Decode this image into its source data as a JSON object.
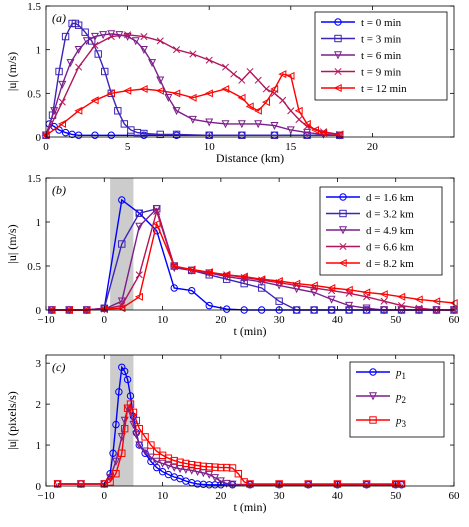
{
  "chart_data": [
    {
      "panel": "(a)",
      "type": "line",
      "xlabel": "Distance (km)",
      "ylabel": "|u| (m/s)",
      "xlim": [
        0,
        25
      ],
      "ylim": [
        0,
        1.5
      ],
      "xticks": [
        "0",
        "5",
        "10",
        "15",
        "20"
      ],
      "yticks": [
        "0",
        "0.5",
        "1",
        "1.5"
      ],
      "legend_position": "top-right",
      "series": [
        {
          "name": "t = 0 min",
          "color": "#0000ff",
          "marker": "circle",
          "x": [
            0.2,
            0.5,
            0.8,
            1.2,
            1.6,
            2.0,
            3.0,
            4.0,
            6.0,
            8.0,
            10.0,
            12.0,
            14.0,
            16.0,
            18.0
          ],
          "y": [
            0.15,
            0.12,
            0.08,
            0.05,
            0.03,
            0.02,
            0.02,
            0.02,
            0.02,
            0.02,
            0.02,
            0.02,
            0.02,
            0.02,
            0.02
          ]
        },
        {
          "name": "t = 3 min",
          "color": "#3d24b8",
          "marker": "square",
          "x": [
            0.0,
            0.4,
            0.8,
            1.2,
            1.6,
            1.8,
            2.0,
            2.4,
            2.8,
            3.2,
            3.6,
            4.0,
            4.4,
            4.8,
            5.2,
            5.6,
            6.0,
            7.0,
            8.0,
            10.0,
            12.0,
            14.0,
            16.0,
            18.0
          ],
          "y": [
            0.02,
            0.25,
            0.75,
            1.15,
            1.3,
            1.3,
            1.28,
            1.2,
            1.1,
            0.95,
            0.75,
            0.5,
            0.3,
            0.15,
            0.08,
            0.05,
            0.04,
            0.03,
            0.03,
            0.02,
            0.02,
            0.02,
            0.02,
            0.02
          ]
        },
        {
          "name": "t = 6 min",
          "color": "#7a1e8a",
          "marker": "triangle-down",
          "x": [
            0.0,
            0.5,
            1.0,
            1.5,
            2.0,
            2.5,
            3.0,
            3.5,
            4.0,
            4.5,
            5.0,
            5.5,
            6.0,
            6.5,
            7.0,
            7.5,
            8.0,
            9.0,
            10.0,
            11.0,
            12.0,
            13.0,
            14.0,
            15.0,
            16.0,
            17.0,
            18.0
          ],
          "y": [
            0.02,
            0.3,
            0.6,
            0.85,
            1.0,
            1.1,
            1.15,
            1.17,
            1.18,
            1.17,
            1.15,
            1.1,
            1.0,
            0.85,
            0.65,
            0.45,
            0.3,
            0.2,
            0.17,
            0.15,
            0.15,
            0.15,
            0.13,
            0.08,
            0.05,
            0.03,
            0.02
          ]
        },
        {
          "name": "t = 9 min",
          "color": "#b4145a",
          "marker": "x",
          "x": [
            0.0,
            1.0,
            2.0,
            3.0,
            4.0,
            5.0,
            6.0,
            7.0,
            8.0,
            9.0,
            10.0,
            11.0,
            11.5,
            12.0,
            12.5,
            13.0,
            13.5,
            14.0,
            14.5,
            15.0,
            15.5,
            16.0,
            17.0,
            18.0
          ],
          "y": [
            0.02,
            0.4,
            0.8,
            1.05,
            1.15,
            1.17,
            1.15,
            1.1,
            1.0,
            0.95,
            0.88,
            0.8,
            0.72,
            0.65,
            0.75,
            0.65,
            0.55,
            0.5,
            0.42,
            0.3,
            0.2,
            0.12,
            0.06,
            0.03
          ]
        },
        {
          "name": "t = 12 min",
          "color": "#ff0000",
          "marker": "triangle-left",
          "x": [
            0.0,
            1.0,
            2.0,
            3.0,
            4.0,
            5.0,
            6.0,
            7.0,
            8.0,
            9.0,
            10.0,
            11.0,
            12.0,
            12.5,
            13.0,
            13.5,
            14.0,
            14.5,
            15.0,
            15.5,
            16.0,
            16.5,
            17.0,
            18.0
          ],
          "y": [
            0.02,
            0.15,
            0.3,
            0.42,
            0.5,
            0.53,
            0.55,
            0.53,
            0.5,
            0.45,
            0.5,
            0.55,
            0.45,
            0.35,
            0.3,
            0.4,
            0.55,
            0.72,
            0.7,
            0.3,
            0.15,
            0.08,
            0.05,
            0.03
          ]
        }
      ]
    },
    {
      "panel": "(b)",
      "type": "line",
      "xlabel": "t (min)",
      "ylabel": "|u| (m/s)",
      "xlim": [
        -10,
        60
      ],
      "ylim": [
        0,
        1.5
      ],
      "shaded_region": [
        1,
        5
      ],
      "xticks": [
        "−10",
        "0",
        "10",
        "20",
        "30",
        "40",
        "50",
        "60"
      ],
      "yticks": [
        "0",
        "0.5",
        "1",
        "1.5"
      ],
      "legend_position": "top-right",
      "series": [
        {
          "name": "d = 1.6 km",
          "color": "#0000ff",
          "marker": "circle",
          "x": [
            -9,
            -6,
            -3,
            0,
            3,
            6,
            9,
            12,
            15,
            18,
            21,
            24,
            27,
            30,
            33,
            36,
            39,
            42,
            45,
            48,
            51,
            54,
            57,
            60
          ],
          "y": [
            0,
            0,
            0,
            0.02,
            1.25,
            1.1,
            0.9,
            0.25,
            0.22,
            0.05,
            0.01,
            0.0,
            0.0,
            0.0,
            0.0,
            0.0,
            0.0,
            0.0,
            0.0,
            0.0,
            0.0,
            0.0,
            0.0,
            0.0
          ]
        },
        {
          "name": "d = 3.2 km",
          "color": "#3d24b8",
          "marker": "square",
          "x": [
            -9,
            -6,
            -3,
            0,
            3,
            6,
            9,
            12,
            15,
            18,
            21,
            24,
            27,
            30,
            33,
            36,
            39,
            42,
            45,
            48,
            51,
            54,
            57,
            60
          ],
          "y": [
            0,
            0,
            0,
            0.02,
            0.75,
            1.1,
            1.15,
            0.5,
            0.45,
            0.4,
            0.35,
            0.3,
            0.25,
            0.1,
            0.0,
            0.0,
            0.0,
            0.0,
            0.0,
            0.0,
            0.0,
            0.0,
            0.0,
            0.0
          ]
        },
        {
          "name": "d = 4.9 km",
          "color": "#7a1e8a",
          "marker": "triangle-down",
          "x": [
            -9,
            -6,
            -3,
            0,
            3,
            6,
            9,
            12,
            15,
            18,
            21,
            24,
            27,
            30,
            33,
            36,
            39,
            42,
            45,
            48,
            51,
            54,
            57,
            60
          ],
          "y": [
            0,
            0,
            0,
            0.01,
            0.1,
            0.95,
            1.15,
            0.48,
            0.45,
            0.42,
            0.38,
            0.35,
            0.32,
            0.28,
            0.24,
            0.2,
            0.12,
            0.05,
            0.02,
            0.0,
            0.0,
            0.0,
            0.0,
            0.0
          ]
        },
        {
          "name": "d = 6.6 km",
          "color": "#b4145a",
          "marker": "x",
          "x": [
            -9,
            -6,
            -3,
            0,
            3,
            6,
            9,
            12,
            15,
            18,
            21,
            24,
            27,
            30,
            33,
            36,
            39,
            42,
            45,
            48,
            51,
            54,
            57,
            60
          ],
          "y": [
            0,
            0,
            0,
            0.01,
            0.05,
            0.4,
            1.12,
            0.5,
            0.45,
            0.42,
            0.4,
            0.37,
            0.34,
            0.31,
            0.28,
            0.25,
            0.22,
            0.19,
            0.15,
            0.1,
            0.05,
            0.02,
            0.0,
            0.0
          ]
        },
        {
          "name": "d = 8.2 km",
          "color": "#ff0000",
          "marker": "triangle-left",
          "x": [
            -9,
            -6,
            -3,
            0,
            3,
            6,
            9,
            12,
            15,
            18,
            21,
            24,
            27,
            30,
            33,
            36,
            39,
            42,
            45,
            48,
            51,
            54,
            57,
            60
          ],
          "y": [
            0,
            0,
            0,
            0.01,
            0.02,
            0.15,
            0.98,
            0.5,
            0.46,
            0.43,
            0.4,
            0.38,
            0.35,
            0.33,
            0.3,
            0.28,
            0.25,
            0.23,
            0.2,
            0.18,
            0.15,
            0.12,
            0.1,
            0.08
          ]
        }
      ]
    },
    {
      "panel": "(c)",
      "type": "line",
      "xlabel": "t (min)",
      "ylabel": "|u| (pixels/s)",
      "xlim": [
        -10,
        60
      ],
      "ylim": [
        0,
        3.2
      ],
      "shaded_region": [
        1,
        5
      ],
      "xticks": [
        "−10",
        "0",
        "10",
        "20",
        "30",
        "40",
        "50",
        "60"
      ],
      "yticks": [
        "0",
        "1",
        "2",
        "3"
      ],
      "legend_position": "top-right",
      "series": [
        {
          "name": "p",
          "subscript": "1",
          "color": "#0000ff",
          "marker": "circle",
          "x": [
            -8,
            -4,
            0,
            1,
            1.5,
            2,
            2.5,
            3,
            3.5,
            4,
            4.5,
            5,
            5.5,
            6,
            7,
            8,
            9,
            10,
            11,
            12,
            13,
            14,
            15,
            16,
            17,
            18,
            19,
            20,
            22,
            25,
            30,
            35,
            40,
            45,
            50,
            51
          ],
          "y": [
            0.05,
            0.05,
            0.05,
            0.3,
            0.8,
            1.5,
            2.3,
            2.9,
            2.8,
            2.6,
            2.2,
            1.7,
            1.3,
            1.0,
            0.8,
            0.6,
            0.45,
            0.35,
            0.28,
            0.22,
            0.18,
            0.12,
            0.08,
            0.05,
            0.04,
            0.03,
            0.03,
            0.03,
            0.03,
            0.03,
            0.03,
            0.03,
            0.03,
            0.03,
            0.03,
            0.03
          ]
        },
        {
          "name": "p",
          "subscript": "2",
          "color": "#7a1e8a",
          "marker": "triangle-down",
          "x": [
            -8,
            -4,
            0,
            1,
            2,
            3,
            3.5,
            4,
            4.5,
            5,
            5.5,
            6,
            7,
            8,
            9,
            10,
            11,
            12,
            13,
            14,
            15,
            16,
            17,
            18,
            19,
            20,
            21,
            22,
            25,
            30,
            35,
            40,
            45,
            50,
            51
          ],
          "y": [
            0.05,
            0.05,
            0.05,
            0.2,
            0.6,
            1.2,
            1.6,
            1.9,
            1.8,
            1.5,
            1.25,
            1.0,
            0.85,
            0.7,
            0.6,
            0.55,
            0.5,
            0.45,
            0.42,
            0.4,
            0.38,
            0.35,
            0.32,
            0.28,
            0.2,
            0.12,
            0.06,
            0.04,
            0.04,
            0.04,
            0.04,
            0.04,
            0.04,
            0.04,
            0.04
          ]
        },
        {
          "name": "p",
          "subscript": "3",
          "color": "#ff0000",
          "marker": "square",
          "x": [
            -8,
            -4,
            0,
            1,
            2,
            3,
            3.5,
            4,
            4.5,
            5,
            5.5,
            6,
            7,
            8,
            9,
            10,
            11,
            12,
            13,
            14,
            15,
            16,
            17,
            18,
            19,
            20,
            21,
            22,
            23,
            24,
            25,
            30,
            35,
            40,
            45,
            50,
            51
          ],
          "y": [
            0.05,
            0.05,
            0.05,
            0.1,
            0.3,
            0.8,
            1.4,
            1.9,
            2.0,
            1.8,
            1.6,
            1.4,
            1.2,
            1.0,
            0.85,
            0.75,
            0.68,
            0.62,
            0.58,
            0.55,
            0.52,
            0.5,
            0.48,
            0.47,
            0.46,
            0.45,
            0.45,
            0.44,
            0.3,
            0.1,
            0.05,
            0.05,
            0.05,
            0.05,
            0.05,
            0.05,
            0.05
          ]
        }
      ]
    }
  ]
}
